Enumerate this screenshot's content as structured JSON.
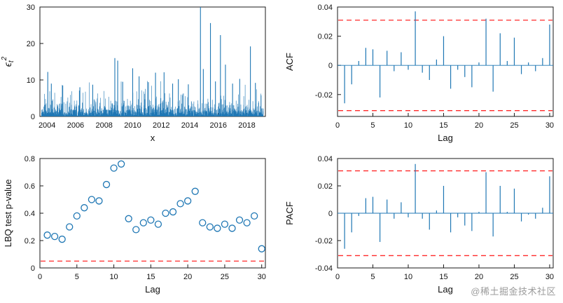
{
  "page": {
    "watermark": "@稀土掘金技术社区"
  },
  "colors": {
    "series": "#1f77b4",
    "threshold": "#ff2a2a",
    "axis": "#1a1a1a"
  },
  "chart_data": [
    {
      "name": "squared-residuals-series",
      "type": "line",
      "title": "",
      "xlabel": "x",
      "ylabel_parts": {
        "base": "ϵ",
        "sub": "t",
        "sup": "2"
      },
      "xlim": [
        2003.5,
        2019.3
      ],
      "ylim": [
        0,
        30
      ],
      "xticks": [
        2004,
        2006,
        2008,
        2010,
        2012,
        2014,
        2016,
        2018
      ],
      "yticks": [
        0,
        10,
        20,
        30
      ],
      "x_start": 2003.6,
      "x_end": 2019.15,
      "noise": {
        "samples": 1300,
        "scale": 1.4,
        "cap": 9.8
      },
      "spikes": [
        [
          2004.05,
          12.2
        ],
        [
          2004.3,
          9.0
        ],
        [
          2005.1,
          8.5
        ],
        [
          2006.3,
          8.0
        ],
        [
          2007.2,
          8.7
        ],
        [
          2008.75,
          16.0
        ],
        [
          2008.95,
          15.3
        ],
        [
          2009.3,
          9.5
        ],
        [
          2010.0,
          13.2
        ],
        [
          2010.45,
          11.0
        ],
        [
          2011.1,
          9.4
        ],
        [
          2011.6,
          12.0
        ],
        [
          2012.2,
          12.1
        ],
        [
          2012.8,
          9.0
        ],
        [
          2013.2,
          10.2
        ],
        [
          2013.9,
          8.8
        ],
        [
          2014.75,
          30.5
        ],
        [
          2014.95,
          13.0
        ],
        [
          2015.45,
          25.6
        ],
        [
          2015.8,
          9.6
        ],
        [
          2016.15,
          22.3
        ],
        [
          2016.5,
          14.2
        ],
        [
          2017.0,
          9.0
        ],
        [
          2017.5,
          10.3
        ],
        [
          2018.25,
          19.2
        ],
        [
          2018.6,
          9.2
        ]
      ]
    },
    {
      "name": "acf",
      "type": "bar",
      "subtype": "stem",
      "xlabel": "Lag",
      "ylabel": "ACF",
      "xlim": [
        0,
        30.5
      ],
      "ylim": [
        -0.035,
        0.04
      ],
      "xticks": [
        0,
        5,
        10,
        15,
        20,
        25,
        30
      ],
      "yticks": [
        -0.02,
        0,
        0.02,
        0.04
      ],
      "confidence_band": 0.031,
      "lags": [
        1,
        2,
        3,
        4,
        5,
        6,
        7,
        8,
        9,
        10,
        11,
        12,
        13,
        14,
        15,
        16,
        17,
        18,
        19,
        20,
        21,
        22,
        23,
        24,
        25,
        26,
        27,
        28,
        29,
        30
      ],
      "values": [
        -0.026,
        -0.013,
        0.003,
        0.012,
        0.011,
        -0.022,
        0.01,
        -0.004,
        0.009,
        -0.003,
        0.037,
        -0.005,
        -0.01,
        0.004,
        0.02,
        -0.016,
        -0.003,
        -0.008,
        -0.015,
        0.002,
        0.032,
        -0.018,
        0.022,
        0.003,
        0.019,
        -0.006,
        0.002,
        -0.004,
        0.005,
        0.028
      ]
    },
    {
      "name": "lbq-pvalues",
      "type": "scatter",
      "xlabel": "Lag",
      "ylabel": "LBQ test p-value",
      "xlim": [
        0,
        30.5
      ],
      "ylim": [
        0,
        0.8
      ],
      "xticks": [
        0,
        5,
        10,
        15,
        20,
        25,
        30
      ],
      "yticks": [
        0,
        0.2,
        0.4,
        0.6,
        0.8
      ],
      "threshold": 0.05,
      "x": [
        1,
        2,
        3,
        4,
        5,
        6,
        7,
        8,
        9,
        10,
        11,
        12,
        13,
        14,
        15,
        16,
        17,
        18,
        19,
        20,
        21,
        22,
        23,
        24,
        25,
        26,
        27,
        28,
        29,
        30
      ],
      "y": [
        0.24,
        0.23,
        0.21,
        0.3,
        0.38,
        0.44,
        0.5,
        0.49,
        0.61,
        0.73,
        0.76,
        0.36,
        0.28,
        0.33,
        0.35,
        0.32,
        0.4,
        0.41,
        0.47,
        0.49,
        0.56,
        0.33,
        0.3,
        0.29,
        0.32,
        0.29,
        0.35,
        0.33,
        0.38,
        0.14
      ]
    },
    {
      "name": "pacf",
      "type": "bar",
      "subtype": "stem",
      "xlabel": "Lag",
      "ylabel": "PACF",
      "xlim": [
        0,
        30.5
      ],
      "ylim": [
        -0.04,
        0.04
      ],
      "xticks": [
        0,
        5,
        10,
        15,
        20,
        25,
        30
      ],
      "yticks": [
        -0.04,
        -0.02,
        0,
        0.02,
        0.04
      ],
      "confidence_band": 0.031,
      "lags": [
        1,
        2,
        3,
        4,
        5,
        6,
        7,
        8,
        9,
        10,
        11,
        12,
        13,
        14,
        15,
        16,
        17,
        18,
        19,
        20,
        21,
        22,
        23,
        24,
        25,
        26,
        27,
        28,
        29,
        30
      ],
      "values": [
        -0.026,
        -0.014,
        -0.002,
        0.011,
        0.012,
        -0.021,
        0.01,
        -0.004,
        0.008,
        -0.003,
        0.036,
        -0.004,
        -0.012,
        0.002,
        0.02,
        -0.014,
        -0.003,
        -0.009,
        -0.013,
        0.001,
        0.03,
        -0.017,
        0.02,
        0.001,
        0.018,
        -0.006,
        -0.001,
        -0.004,
        0.004,
        0.027
      ]
    }
  ]
}
